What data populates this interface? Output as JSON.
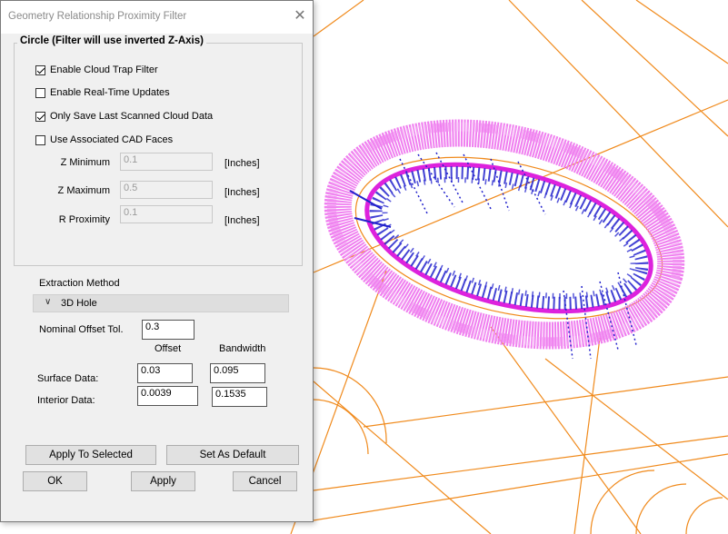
{
  "dialog": {
    "title": "Geometry Relationship Proximity Filter",
    "close_glyph": "✕",
    "group_title": "Circle (Filter will use inverted Z-Axis)",
    "checkboxes": [
      {
        "label": "Enable Cloud Trap Filter",
        "checked": true
      },
      {
        "label": "Enable Real-Time Updates",
        "checked": false
      },
      {
        "label": "Only Save Last Scanned Cloud Data",
        "checked": true
      },
      {
        "label": "Use Associated CAD Faces",
        "checked": false
      }
    ],
    "params": [
      {
        "label": "Z Minimum",
        "value": "0.1",
        "unit": "[Inches]"
      },
      {
        "label": "Z Maximum",
        "value": "0.5",
        "unit": "[Inches]"
      },
      {
        "label": "R Proximity",
        "value": "0.1",
        "unit": "[Inches]"
      }
    ],
    "extraction_label": "Extraction Method",
    "extraction_value": "3D Hole",
    "chevron_glyph": "∨",
    "nominal_label": "Nominal Offset  Tol.",
    "nominal_value": "0.3",
    "offset_header": "Offset",
    "bandwidth_header": "Bandwidth",
    "surface_label": "Surface Data:",
    "surface_offset": "0.03",
    "surface_bandwidth": "0.095",
    "interior_label": "Interior Data:",
    "interior_offset": "0.0039",
    "interior_bandwidth": "0.1535",
    "buttons": {
      "apply_selected": "Apply To Selected",
      "set_default": "Set As Default",
      "ok": "OK",
      "apply": "Apply",
      "cancel": "Cancel"
    }
  },
  "colors": {
    "cad_lines": "#f08a1c",
    "cloud_outer": "#ee66ee",
    "cloud_inner": "#1a1acc",
    "fit_circle": "#dd22dd"
  }
}
